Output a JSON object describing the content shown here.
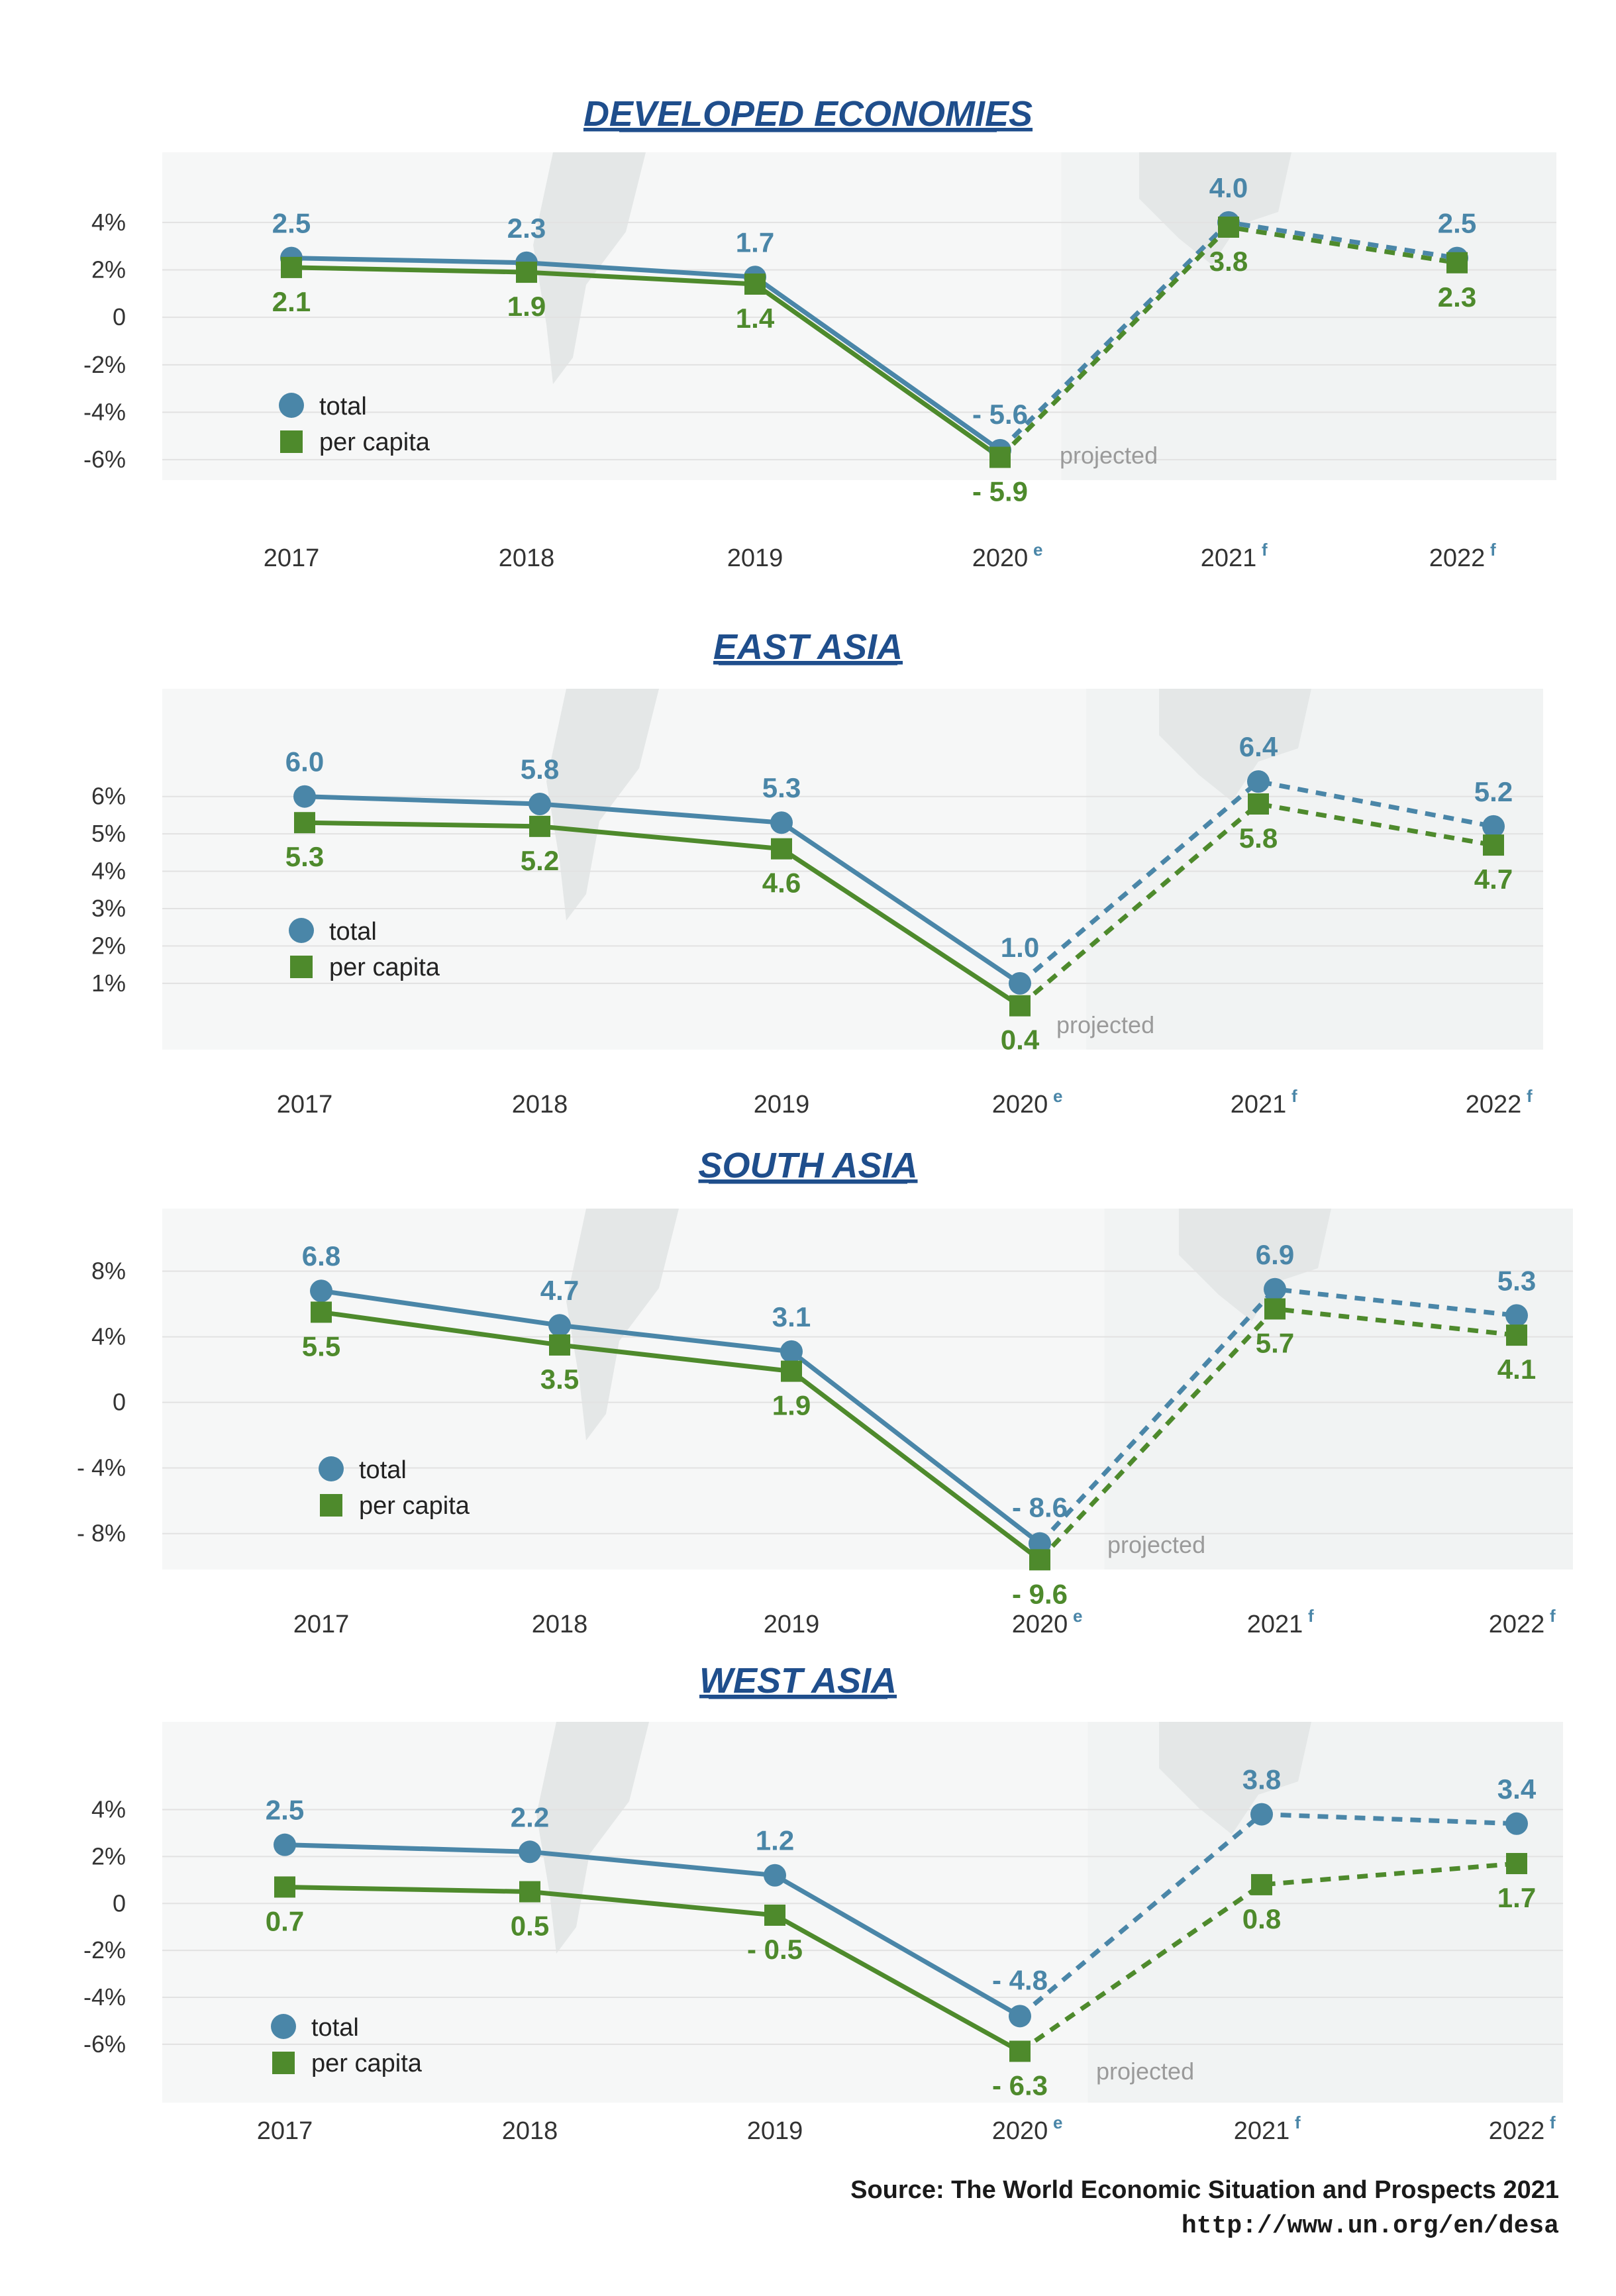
{
  "colors": {
    "total": "#4a86a8",
    "per_capita": "#4e8a2c",
    "title": "#1f4e8c",
    "axis_text": "#333333",
    "grid": "#e2e2e2"
  },
  "legend": {
    "total": "total",
    "per_capita": "per capita"
  },
  "projected_label": "projected",
  "source": {
    "line1": "Source:  The World Economic Situation and Prospects 2021",
    "line2": "http://www.un.org/en/desa"
  },
  "chart_data": [
    {
      "type": "line",
      "title": "DEVELOPED ECONOMIES",
      "x": [
        "2017",
        "2018",
        "2019",
        "2020",
        "2021",
        "2022"
      ],
      "x_superscripts": [
        "",
        "",
        "",
        "e",
        "f",
        "f"
      ],
      "yticks": [
        "4%",
        "2%",
        "0",
        "-2%",
        "-4%",
        "-6%"
      ],
      "ytick_values": [
        4,
        2,
        0,
        -2,
        -4,
        -6
      ],
      "ylim": [
        -7,
        5
      ],
      "series": [
        {
          "name": "total",
          "marker": "circle",
          "values": [
            2.5,
            2.3,
            1.7,
            -5.6,
            4.0,
            2.5
          ],
          "labels": [
            "2.5",
            "2.3",
            "1.7",
            "- 5.6",
            "4.0",
            "2.5"
          ]
        },
        {
          "name": "per capita",
          "marker": "square",
          "values": [
            2.1,
            1.9,
            1.4,
            -5.9,
            3.8,
            2.3
          ],
          "labels": [
            "2.1",
            "1.9",
            "1.4",
            "- 5.9",
            "3.8",
            "2.3"
          ]
        }
      ],
      "projected_from_index": 3
    },
    {
      "type": "line",
      "title": "EAST ASIA",
      "x": [
        "2017",
        "2018",
        "2019",
        "2020",
        "2021",
        "2022"
      ],
      "x_superscripts": [
        "",
        "",
        "",
        "e",
        "f",
        "f"
      ],
      "yticks": [
        "6%",
        "5%",
        "4%",
        "3%",
        "2%",
        "1%"
      ],
      "ytick_values": [
        6,
        5,
        4,
        3,
        2,
        1
      ],
      "ylim": [
        0.2,
        7.2
      ],
      "series": [
        {
          "name": "total",
          "marker": "circle",
          "values": [
            6.0,
            5.8,
            5.3,
            1.0,
            6.4,
            5.2
          ],
          "labels": [
            "6.0",
            "5.8",
            "5.3",
            "1.0",
            "6.4",
            "5.2"
          ]
        },
        {
          "name": "per capita",
          "marker": "square",
          "values": [
            5.3,
            5.2,
            4.6,
            0.4,
            5.8,
            4.7
          ],
          "labels": [
            "5.3",
            "5.2",
            "4.6",
            "0.4",
            "5.8",
            "4.7"
          ]
        }
      ],
      "projected_from_index": 3
    },
    {
      "type": "line",
      "title": "SOUTH ASIA",
      "x": [
        "2017",
        "2018",
        "2019",
        "2020",
        "2021",
        "2022"
      ],
      "x_superscripts": [
        "",
        "",
        "",
        "e",
        "f",
        "f"
      ],
      "yticks": [
        "8%",
        "4%",
        "0",
        "- 4%",
        "- 8%"
      ],
      "ytick_values": [
        8,
        4,
        0,
        -4,
        -8
      ],
      "ylim": [
        -11,
        10
      ],
      "series": [
        {
          "name": "total",
          "marker": "circle",
          "values": [
            6.8,
            4.7,
            3.1,
            -8.6,
            6.9,
            5.3
          ],
          "labels": [
            "6.8",
            "4.7",
            "3.1",
            "- 8.6",
            "6.9",
            "5.3"
          ]
        },
        {
          "name": "per capita",
          "marker": "square",
          "values": [
            5.5,
            3.5,
            1.9,
            -9.6,
            5.7,
            4.1
          ],
          "labels": [
            "5.5",
            "3.5",
            "1.9",
            "- 9.6",
            "5.7",
            "4.1"
          ]
        }
      ],
      "projected_from_index": 3
    },
    {
      "type": "line",
      "title": "WEST ASIA",
      "x": [
        "2017",
        "2018",
        "2019",
        "2020",
        "2021",
        "2022"
      ],
      "x_superscripts": [
        "",
        "",
        "",
        "e",
        "f",
        "f"
      ],
      "yticks": [
        "4%",
        "2%",
        "0",
        "-2%",
        "-4%",
        "-6%"
      ],
      "ytick_values": [
        4,
        2,
        0,
        -2,
        -4,
        -6
      ],
      "ylim": [
        -7.5,
        5.2
      ],
      "series": [
        {
          "name": "total",
          "marker": "circle",
          "values": [
            2.5,
            2.2,
            1.2,
            -4.8,
            3.8,
            3.4
          ],
          "labels": [
            "2.5",
            "2.2",
            "1.2",
            "- 4.8",
            "3.8",
            "3.4"
          ]
        },
        {
          "name": "per capita",
          "marker": "square",
          "values": [
            0.7,
            0.5,
            -0.5,
            -6.3,
            0.8,
            1.7
          ],
          "labels": [
            "0.7",
            "0.5",
            "- 0.5",
            "- 6.3",
            "0.8",
            "1.7"
          ]
        }
      ],
      "projected_from_index": 3
    }
  ]
}
